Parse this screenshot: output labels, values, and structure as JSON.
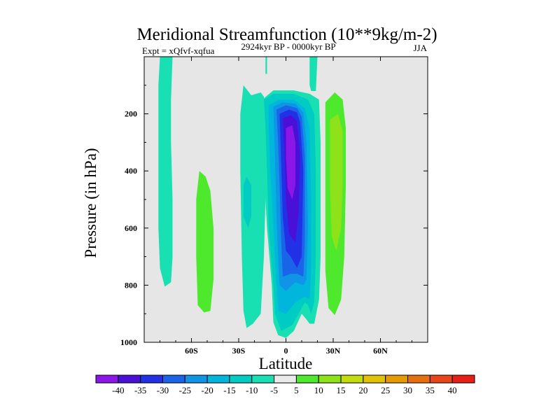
{
  "chart_data": {
    "type": "heatmap",
    "title": "Meridional Streamfunction (10**9kg/m-2)",
    "subtitle_left": "Expt = xQfvf-xqfua",
    "subtitle_center": "2924kyr BP - 0000kyr BP",
    "subtitle_right": "JJA",
    "xlabel": "Latitude",
    "ylabel": "Pressure (in hPa)",
    "xlim": [
      -90,
      90
    ],
    "ylim": [
      1000,
      0
    ],
    "x_ticks": [
      {
        "value": -60,
        "label": "60S"
      },
      {
        "value": -30,
        "label": "30S"
      },
      {
        "value": 0,
        "label": "0"
      },
      {
        "value": 30,
        "label": "30N"
      },
      {
        "value": 60,
        "label": "60N"
      }
    ],
    "y_ticks": [
      {
        "value": 200,
        "label": "200"
      },
      {
        "value": 400,
        "label": "400"
      },
      {
        "value": 600,
        "label": "600"
      },
      {
        "value": 800,
        "label": "800"
      },
      {
        "value": 1000,
        "label": "1000"
      }
    ],
    "background_color": "#e6e6e6",
    "colorbar": {
      "labels": [
        "-40",
        "-35",
        "-30",
        "-25",
        "-20",
        "-15",
        "-10",
        "-5",
        "5",
        "10",
        "15",
        "20",
        "25",
        "30",
        "35",
        "40"
      ],
      "colors": [
        "#8a16e8",
        "#4a10d8",
        "#2230e6",
        "#1a64ea",
        "#0f94e6",
        "#00b6dc",
        "#00ccc4",
        "#19e0b2",
        "#eaeaea",
        "#4ee82c",
        "#8ee21a",
        "#c2dc0e",
        "#e2c204",
        "#e69a02",
        "#e67010",
        "#e6461a",
        "#e62018"
      ]
    },
    "regions": [
      {
        "name": "band-70s-teal",
        "level": "-5",
        "color": "#19e0b2",
        "points": [
          [
            -80,
            0
          ],
          [
            -72,
            0
          ],
          [
            -73,
            150
          ],
          [
            -73,
            300
          ],
          [
            -72,
            500
          ],
          [
            -72,
            700
          ],
          [
            -73,
            790
          ],
          [
            -77,
            805
          ],
          [
            -80,
            740
          ],
          [
            -81,
            600
          ],
          [
            -81,
            400
          ],
          [
            -81,
            100
          ]
        ]
      },
      {
        "name": "band-50s-green",
        "level": "5",
        "color": "#4ee82c",
        "points": [
          [
            -55,
            400
          ],
          [
            -51,
            420
          ],
          [
            -48,
            470
          ],
          [
            -46,
            600
          ],
          [
            -46,
            780
          ],
          [
            -48,
            890
          ],
          [
            -52,
            895
          ],
          [
            -56,
            870
          ],
          [
            -57,
            700
          ],
          [
            -57,
            500
          ]
        ]
      },
      {
        "name": "band-25s-teal",
        "level": "-5",
        "color": "#19e0b2",
        "points": [
          [
            -27,
            100
          ],
          [
            -22,
            135
          ],
          [
            -16,
            125
          ],
          [
            -14,
            140
          ],
          [
            -13,
            200
          ],
          [
            -13,
            500
          ],
          [
            -14,
            700
          ],
          [
            -16,
            900
          ],
          [
            -21,
            935
          ],
          [
            -25,
            950
          ],
          [
            -27,
            890
          ],
          [
            -28,
            700
          ],
          [
            -29,
            400
          ],
          [
            -29,
            200
          ]
        ]
      },
      {
        "name": "band-15s-cyan",
        "level": "-10",
        "color": "#00ccc4",
        "points": [
          [
            -25,
            420
          ],
          [
            -22,
            450
          ],
          [
            -22,
            560
          ],
          [
            -24,
            600
          ],
          [
            -27,
            560
          ],
          [
            -27,
            450
          ]
        ]
      },
      {
        "name": "cell-10s-top-teal",
        "level": "-5",
        "color": "#19e0b2",
        "points": [
          [
            -13,
            0
          ],
          [
            -12,
            0
          ],
          [
            -12,
            60
          ],
          [
            -13,
            60
          ]
        ]
      },
      {
        "name": "cell-equator-teal",
        "level": "-5",
        "color": "#19e0b2",
        "points": [
          [
            -15,
            150
          ],
          [
            -8,
            118
          ],
          [
            5,
            118
          ],
          [
            15,
            130
          ],
          [
            21,
            150
          ],
          [
            22,
            300
          ],
          [
            22,
            500
          ],
          [
            22,
            700
          ],
          [
            21,
            850
          ],
          [
            18,
            935
          ],
          [
            15,
            935
          ],
          [
            13,
            920
          ],
          [
            10,
            900
          ],
          [
            5,
            960
          ],
          [
            0,
            985
          ],
          [
            -5,
            975
          ],
          [
            -8,
            930
          ],
          [
            -9,
            800
          ],
          [
            -12,
            600
          ],
          [
            -14,
            400
          ],
          [
            -15,
            250
          ]
        ]
      },
      {
        "name": "cell-equator-cyan",
        "level": "-10",
        "color": "#00ccc4",
        "points": [
          [
            -14,
            150
          ],
          [
            -8,
            130
          ],
          [
            5,
            130
          ],
          [
            14,
            150
          ],
          [
            18,
            200
          ],
          [
            19,
            400
          ],
          [
            19,
            700
          ],
          [
            18,
            860
          ],
          [
            16,
            900
          ],
          [
            14,
            870
          ],
          [
            12,
            860
          ],
          [
            8,
            900
          ],
          [
            4,
            940
          ],
          [
            -3,
            960
          ],
          [
            -7,
            900
          ],
          [
            -8,
            800
          ],
          [
            -11,
            600
          ],
          [
            -12,
            400
          ],
          [
            -13,
            250
          ]
        ]
      },
      {
        "name": "cell-equator-skyblue",
        "level": "-15",
        "color": "#00b6dc",
        "points": [
          [
            -11,
            170
          ],
          [
            -4,
            150
          ],
          [
            5,
            150
          ],
          [
            12,
            180
          ],
          [
            15,
            250
          ],
          [
            16,
            500
          ],
          [
            16,
            750
          ],
          [
            15,
            850
          ],
          [
            12,
            840
          ],
          [
            6,
            860
          ],
          [
            0,
            900
          ],
          [
            -5,
            890
          ],
          [
            -6,
            800
          ],
          [
            -8,
            600
          ],
          [
            -10,
            400
          ],
          [
            -11,
            250
          ]
        ]
      },
      {
        "name": "cell-equator-blue",
        "level": "-20",
        "color": "#0f94e6",
        "points": [
          [
            -8,
            175
          ],
          [
            -2,
            160
          ],
          [
            6,
            165
          ],
          [
            11,
            195
          ],
          [
            13,
            300
          ],
          [
            14,
            600
          ],
          [
            13,
            780
          ],
          [
            11,
            800
          ],
          [
            6,
            790
          ],
          [
            0,
            820
          ],
          [
            -4,
            800
          ],
          [
            -5,
            700
          ],
          [
            -6,
            550
          ],
          [
            -7,
            350
          ]
        ]
      },
      {
        "name": "cell-equator-royal",
        "level": "-25",
        "color": "#1a64ea",
        "points": [
          [
            -6,
            185
          ],
          [
            0,
            170
          ],
          [
            7,
            180
          ],
          [
            10,
            210
          ],
          [
            12,
            350
          ],
          [
            12,
            650
          ],
          [
            11,
            770
          ],
          [
            7,
            760
          ],
          [
            3,
            760
          ],
          [
            -2,
            770
          ],
          [
            -3,
            650
          ],
          [
            -4,
            450
          ],
          [
            -5,
            300
          ]
        ]
      },
      {
        "name": "cell-equator-deepblue",
        "level": "-30",
        "color": "#2230e6",
        "points": [
          [
            -4,
            200
          ],
          [
            2,
            185
          ],
          [
            7,
            195
          ],
          [
            9,
            230
          ],
          [
            11,
            400
          ],
          [
            10,
            700
          ],
          [
            7,
            740
          ],
          [
            3,
            700
          ],
          [
            0,
            680
          ],
          [
            -2,
            560
          ],
          [
            -3,
            380
          ]
        ]
      },
      {
        "name": "cell-equator-indigo",
        "level": "-35",
        "color": "#4a10d8",
        "points": [
          [
            -2,
            215
          ],
          [
            3,
            205
          ],
          [
            7,
            225
          ],
          [
            9,
            350
          ],
          [
            8,
            550
          ],
          [
            6,
            650
          ],
          [
            2,
            620
          ],
          [
            0,
            500
          ],
          [
            -1,
            330
          ]
        ]
      },
      {
        "name": "cell-equator-violet",
        "level": "-40",
        "color": "#8a16e8",
        "points": [
          [
            0,
            250
          ],
          [
            4,
            240
          ],
          [
            6,
            300
          ],
          [
            6,
            450
          ],
          [
            4,
            500
          ],
          [
            1,
            460
          ],
          [
            0,
            350
          ]
        ]
      },
      {
        "name": "strip-10n-teal",
        "level": "-5",
        "color": "#19e0b2",
        "points": [
          [
            15,
            0
          ],
          [
            20,
            0
          ],
          [
            19,
            120
          ],
          [
            18,
            120
          ],
          [
            16,
            120
          ],
          [
            15,
            100
          ]
        ]
      },
      {
        "name": "cell-30n-green",
        "level": "5",
        "color": "#4ee82c",
        "points": [
          [
            25,
            160
          ],
          [
            31,
            125
          ],
          [
            36,
            150
          ],
          [
            38,
            250
          ],
          [
            38,
            450
          ],
          [
            37,
            700
          ],
          [
            35,
            850
          ],
          [
            31,
            905
          ],
          [
            27,
            880
          ],
          [
            25,
            750
          ],
          [
            25,
            500
          ],
          [
            25,
            250
          ]
        ]
      },
      {
        "name": "cell-30n-lime",
        "level": "10",
        "color": "#8ee21a",
        "points": [
          [
            28,
            220
          ],
          [
            33,
            200
          ],
          [
            36,
            260
          ],
          [
            36,
            450
          ],
          [
            35,
            600
          ],
          [
            32,
            680
          ],
          [
            29,
            630
          ],
          [
            28,
            450
          ]
        ]
      }
    ]
  }
}
